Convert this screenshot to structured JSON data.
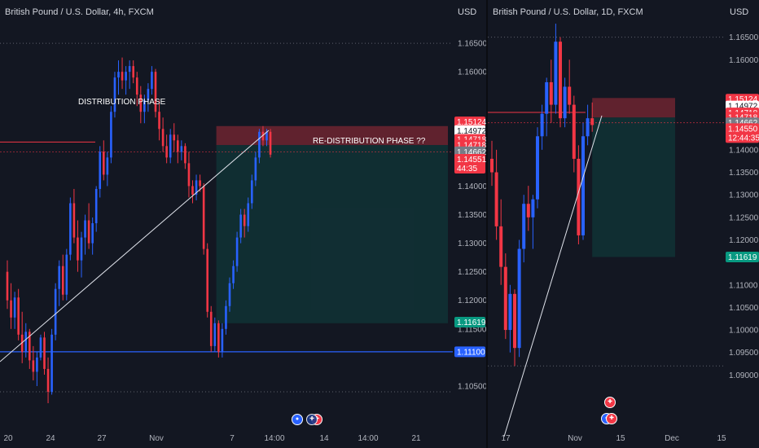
{
  "left_chart": {
    "title": "British Pound / U.S. Dollar, 4h, FXCM",
    "currency": "USD",
    "annotations": {
      "distribution": "DISTRIBUTION PHASE",
      "redistribution": "RE-DISTRIBUTION PHASE ??"
    },
    "y_ticks": [
      "1.16500",
      "1.16000",
      "1.14000",
      "1.13500",
      "1.13000",
      "1.12500",
      "1.12000",
      "1.11500",
      "1.10500"
    ],
    "price_tags": [
      {
        "value": "1.15124",
        "price": 1.15124,
        "bg": "#f23645",
        "fg": "#ffffff"
      },
      {
        "value": "1.14972",
        "price": 1.14972,
        "bg": "#ffffff",
        "fg": "#131722"
      },
      {
        "value": "1.14718",
        "price": 1.14818,
        "bg": "#f23645",
        "fg": "#ffffff"
      },
      {
        "value": "1.14718",
        "price": 1.14718,
        "bg": "#f23645",
        "fg": "#ffffff"
      },
      {
        "value": "1.14662",
        "price": 1.146,
        "bg": "#787b86",
        "fg": "#ffffff"
      },
      {
        "value": "1.14551",
        "price": 1.1447,
        "bg": "#f23645",
        "fg": "#ffffff",
        "sub": "44:35"
      },
      {
        "value": "1.11619",
        "price": 1.11619,
        "bg": "#089981",
        "fg": "#ffffff"
      },
      {
        "value": "1.11100",
        "price": 1.111,
        "bg": "#2962ff",
        "fg": "#ffffff"
      }
    ],
    "x_ticks": [
      "20",
      "24",
      "27",
      "Nov",
      "7",
      "14:00",
      "14",
      "14:00",
      "21"
    ],
    "event_icons": [
      "us-flag-icon",
      "uk-flag-icon"
    ]
  },
  "right_chart": {
    "title": "British Pound / U.S. Dollar, 1D, FXCM",
    "currency": "USD",
    "y_ticks": [
      "1.16500",
      "1.16000",
      "1.14000",
      "1.13500",
      "1.13000",
      "1.12500",
      "1.12000",
      "1.11000",
      "1.10500",
      "1.10000",
      "1.09500",
      "1.09000"
    ],
    "price_tags": [
      {
        "value": "1.15124",
        "price": 1.15124,
        "bg": "#f23645",
        "fg": "#ffffff"
      },
      {
        "value": "1.14972",
        "price": 1.14972,
        "bg": "#ffffff",
        "fg": "#131722"
      },
      {
        "value": "1.14718",
        "price": 1.14818,
        "bg": "#f23645",
        "fg": "#ffffff"
      },
      {
        "value": "1.14718",
        "price": 1.14718,
        "bg": "#f23645",
        "fg": "#ffffff"
      },
      {
        "value": "1.14662",
        "price": 1.146,
        "bg": "#787b86",
        "fg": "#ffffff"
      },
      {
        "value": "1.14550",
        "price": 1.1447,
        "bg": "#f23645",
        "fg": "#ffffff",
        "sub": "12:44:35"
      },
      {
        "value": "1.11619",
        "price": 1.11619,
        "bg": "#089981",
        "fg": "#ffffff"
      }
    ],
    "x_ticks": [
      "17",
      "Nov",
      "15",
      "Dec",
      "15"
    ],
    "event_icons": [
      "uk-flag-icon",
      "us-flag-icon"
    ]
  },
  "colors": {
    "bull": "#2962ff",
    "bear": "#f23645",
    "background": "#131722",
    "grid": "#2a2e39",
    "stop_zone": "#f23645",
    "target_zone": "#089981"
  },
  "chart_data": [
    {
      "type": "candlestick",
      "title": "British Pound / U.S. Dollar, 4h, FXCM",
      "ylabel": "USD",
      "ylim": [
        1.103,
        1.17
      ],
      "x_ticks": [
        "20",
        "24",
        "27",
        "Nov",
        "7",
        "14:00",
        "14",
        "14:00",
        "21"
      ],
      "levels": {
        "stop_upper": 1.1505,
        "entry": 1.14718,
        "target": 1.116,
        "support_line": 1.111,
        "dotted_high": 1.165,
        "dotted_low": 1.104,
        "resistance": 1.1477
      },
      "candles": [
        {
          "o": 1.125,
          "h": 1.127,
          "l": 1.1185,
          "c": 1.12
        },
        {
          "o": 1.12,
          "h": 1.123,
          "l": 1.115,
          "c": 1.117
        },
        {
          "o": 1.117,
          "h": 1.1215,
          "l": 1.115,
          "c": 1.1205
        },
        {
          "o": 1.1205,
          "h": 1.122,
          "l": 1.113,
          "c": 1.114
        },
        {
          "o": 1.114,
          "h": 1.118,
          "l": 1.109,
          "c": 1.111
        },
        {
          "o": 1.111,
          "h": 1.116,
          "l": 1.11,
          "c": 1.1145
        },
        {
          "o": 1.1145,
          "h": 1.115,
          "l": 1.108,
          "c": 1.1095
        },
        {
          "o": 1.1095,
          "h": 1.112,
          "l": 1.106,
          "c": 1.1075
        },
        {
          "o": 1.1075,
          "h": 1.111,
          "l": 1.105,
          "c": 1.11
        },
        {
          "o": 1.11,
          "h": 1.114,
          "l": 1.1095,
          "c": 1.1135
        },
        {
          "o": 1.1135,
          "h": 1.1145,
          "l": 1.107,
          "c": 1.108
        },
        {
          "o": 1.108,
          "h": 1.11,
          "l": 1.102,
          "c": 1.104
        },
        {
          "o": 1.104,
          "h": 1.115,
          "l": 1.1035,
          "c": 1.114
        },
        {
          "o": 1.114,
          "h": 1.123,
          "l": 1.113,
          "c": 1.122
        },
        {
          "o": 1.122,
          "h": 1.127,
          "l": 1.119,
          "c": 1.126
        },
        {
          "o": 1.126,
          "h": 1.128,
          "l": 1.12,
          "c": 1.121
        },
        {
          "o": 1.121,
          "h": 1.129,
          "l": 1.12,
          "c": 1.128
        },
        {
          "o": 1.128,
          "h": 1.138,
          "l": 1.127,
          "c": 1.137
        },
        {
          "o": 1.137,
          "h": 1.1395,
          "l": 1.13,
          "c": 1.131
        },
        {
          "o": 1.131,
          "h": 1.134,
          "l": 1.125,
          "c": 1.127
        },
        {
          "o": 1.127,
          "h": 1.132,
          "l": 1.124,
          "c": 1.131
        },
        {
          "o": 1.131,
          "h": 1.135,
          "l": 1.128,
          "c": 1.134
        },
        {
          "o": 1.134,
          "h": 1.137,
          "l": 1.129,
          "c": 1.13
        },
        {
          "o": 1.13,
          "h": 1.1345,
          "l": 1.128,
          "c": 1.1335
        },
        {
          "o": 1.1335,
          "h": 1.14,
          "l": 1.132,
          "c": 1.1395
        },
        {
          "o": 1.1395,
          "h": 1.147,
          "l": 1.138,
          "c": 1.146
        },
        {
          "o": 1.146,
          "h": 1.148,
          "l": 1.141,
          "c": 1.142
        },
        {
          "o": 1.142,
          "h": 1.146,
          "l": 1.14,
          "c": 1.145
        },
        {
          "o": 1.145,
          "h": 1.154,
          "l": 1.144,
          "c": 1.153
        },
        {
          "o": 1.153,
          "h": 1.16,
          "l": 1.152,
          "c": 1.159
        },
        {
          "o": 1.159,
          "h": 1.162,
          "l": 1.156,
          "c": 1.16
        },
        {
          "o": 1.16,
          "h": 1.1625,
          "l": 1.157,
          "c": 1.1585
        },
        {
          "o": 1.1585,
          "h": 1.161,
          "l": 1.156,
          "c": 1.16
        },
        {
          "o": 1.16,
          "h": 1.162,
          "l": 1.157,
          "c": 1.161
        },
        {
          "o": 1.161,
          "h": 1.162,
          "l": 1.158,
          "c": 1.159
        },
        {
          "o": 1.159,
          "h": 1.16,
          "l": 1.154,
          "c": 1.156
        },
        {
          "o": 1.156,
          "h": 1.1575,
          "l": 1.151,
          "c": 1.153
        },
        {
          "o": 1.153,
          "h": 1.156,
          "l": 1.151,
          "c": 1.155
        },
        {
          "o": 1.155,
          "h": 1.158,
          "l": 1.153,
          "c": 1.157
        },
        {
          "o": 1.157,
          "h": 1.161,
          "l": 1.156,
          "c": 1.16
        },
        {
          "o": 1.16,
          "h": 1.1605,
          "l": 1.152,
          "c": 1.153
        },
        {
          "o": 1.153,
          "h": 1.155,
          "l": 1.148,
          "c": 1.15
        },
        {
          "o": 1.15,
          "h": 1.152,
          "l": 1.146,
          "c": 1.147
        },
        {
          "o": 1.147,
          "h": 1.149,
          "l": 1.144,
          "c": 1.145
        },
        {
          "o": 1.145,
          "h": 1.15,
          "l": 1.144,
          "c": 1.149
        },
        {
          "o": 1.149,
          "h": 1.151,
          "l": 1.146,
          "c": 1.148
        },
        {
          "o": 1.148,
          "h": 1.149,
          "l": 1.144,
          "c": 1.146
        },
        {
          "o": 1.146,
          "h": 1.148,
          "l": 1.1445,
          "c": 1.147
        },
        {
          "o": 1.147,
          "h": 1.1475,
          "l": 1.143,
          "c": 1.144
        },
        {
          "o": 1.144,
          "h": 1.146,
          "l": 1.138,
          "c": 1.14
        },
        {
          "o": 1.14,
          "h": 1.141,
          "l": 1.137,
          "c": 1.1385
        },
        {
          "o": 1.1385,
          "h": 1.142,
          "l": 1.1375,
          "c": 1.141
        },
        {
          "o": 1.141,
          "h": 1.142,
          "l": 1.139,
          "c": 1.14
        },
        {
          "o": 1.14,
          "h": 1.1405,
          "l": 1.128,
          "c": 1.129
        },
        {
          "o": 1.129,
          "h": 1.13,
          "l": 1.117,
          "c": 1.118
        },
        {
          "o": 1.118,
          "h": 1.119,
          "l": 1.111,
          "c": 1.112
        },
        {
          "o": 1.112,
          "h": 1.117,
          "l": 1.111,
          "c": 1.116
        },
        {
          "o": 1.116,
          "h": 1.1165,
          "l": 1.11,
          "c": 1.111
        },
        {
          "o": 1.111,
          "h": 1.116,
          "l": 1.11,
          "c": 1.115
        },
        {
          "o": 1.115,
          "h": 1.12,
          "l": 1.114,
          "c": 1.119
        },
        {
          "o": 1.119,
          "h": 1.124,
          "l": 1.118,
          "c": 1.123
        },
        {
          "o": 1.123,
          "h": 1.127,
          "l": 1.122,
          "c": 1.126
        },
        {
          "o": 1.126,
          "h": 1.132,
          "l": 1.125,
          "c": 1.131
        },
        {
          "o": 1.131,
          "h": 1.136,
          "l": 1.13,
          "c": 1.135
        },
        {
          "o": 1.135,
          "h": 1.136,
          "l": 1.131,
          "c": 1.133
        },
        {
          "o": 1.133,
          "h": 1.138,
          "l": 1.132,
          "c": 1.137
        },
        {
          "o": 1.137,
          "h": 1.142,
          "l": 1.136,
          "c": 1.141
        },
        {
          "o": 1.141,
          "h": 1.146,
          "l": 1.14,
          "c": 1.145
        },
        {
          "o": 1.145,
          "h": 1.15,
          "l": 1.144,
          "c": 1.1495
        },
        {
          "o": 1.1495,
          "h": 1.1505,
          "l": 1.147,
          "c": 1.148
        },
        {
          "o": 1.148,
          "h": 1.15,
          "l": 1.147,
          "c": 1.1495
        },
        {
          "o": 1.1495,
          "h": 1.15,
          "l": 1.145,
          "c": 1.1455
        }
      ]
    },
    {
      "type": "candlestick",
      "title": "British Pound / U.S. Dollar, 1D, FXCM",
      "ylabel": "USD",
      "ylim": [
        1.085,
        1.17
      ],
      "x_ticks": [
        "17",
        "Nov",
        "15",
        "Dec",
        "15"
      ],
      "levels": {
        "stop_upper": 1.1515,
        "entry": 1.14718,
        "target": 1.1162,
        "dotted_high": 1.165,
        "dotted_low": 1.092,
        "resistance": 1.1483
      },
      "candles": [
        {
          "o": 1.138,
          "h": 1.142,
          "l": 1.132,
          "c": 1.135
        },
        {
          "o": 1.135,
          "h": 1.14,
          "l": 1.12,
          "c": 1.123
        },
        {
          "o": 1.123,
          "h": 1.129,
          "l": 1.11,
          "c": 1.114
        },
        {
          "o": 1.114,
          "h": 1.117,
          "l": 1.098,
          "c": 1.1
        },
        {
          "o": 1.1,
          "h": 1.11,
          "l": 1.095,
          "c": 1.108
        },
        {
          "o": 1.108,
          "h": 1.109,
          "l": 1.092,
          "c": 1.096
        },
        {
          "o": 1.096,
          "h": 1.12,
          "l": 1.094,
          "c": 1.118
        },
        {
          "o": 1.118,
          "h": 1.13,
          "l": 1.115,
          "c": 1.128
        },
        {
          "o": 1.128,
          "h": 1.132,
          "l": 1.122,
          "c": 1.125
        },
        {
          "o": 1.125,
          "h": 1.13,
          "l": 1.118,
          "c": 1.129
        },
        {
          "o": 1.129,
          "h": 1.145,
          "l": 1.127,
          "c": 1.143
        },
        {
          "o": 1.143,
          "h": 1.15,
          "l": 1.14,
          "c": 1.148
        },
        {
          "o": 1.148,
          "h": 1.156,
          "l": 1.143,
          "c": 1.155
        },
        {
          "o": 1.155,
          "h": 1.16,
          "l": 1.146,
          "c": 1.15
        },
        {
          "o": 1.15,
          "h": 1.168,
          "l": 1.148,
          "c": 1.164
        },
        {
          "o": 1.164,
          "h": 1.165,
          "l": 1.145,
          "c": 1.147
        },
        {
          "o": 1.147,
          "h": 1.156,
          "l": 1.145,
          "c": 1.154
        },
        {
          "o": 1.154,
          "h": 1.16,
          "l": 1.148,
          "c": 1.15
        },
        {
          "o": 1.15,
          "h": 1.152,
          "l": 1.135,
          "c": 1.138
        },
        {
          "o": 1.138,
          "h": 1.141,
          "l": 1.119,
          "c": 1.121
        },
        {
          "o": 1.121,
          "h": 1.146,
          "l": 1.12,
          "c": 1.143
        },
        {
          "o": 1.143,
          "h": 1.15,
          "l": 1.141,
          "c": 1.147
        },
        {
          "o": 1.147,
          "h": 1.1505,
          "l": 1.144,
          "c": 1.1455
        }
      ]
    }
  ]
}
